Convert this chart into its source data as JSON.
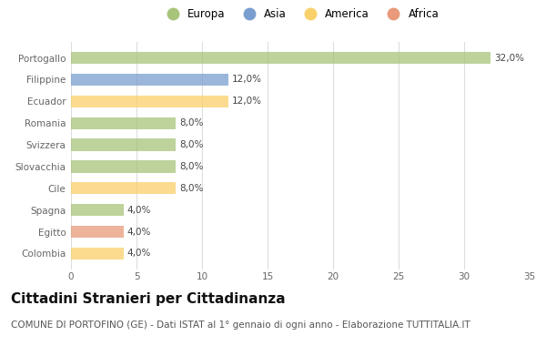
{
  "categories": [
    "Colombia",
    "Egitto",
    "Spagna",
    "Cile",
    "Slovacchia",
    "Svizzera",
    "Romania",
    "Ecuador",
    "Filippine",
    "Portogallo"
  ],
  "values": [
    4.0,
    4.0,
    4.0,
    8.0,
    8.0,
    8.0,
    8.0,
    12.0,
    12.0,
    32.0
  ],
  "colors": [
    "#f9d06a",
    "#e89a7a",
    "#a8c47a",
    "#f9d06a",
    "#a8c47a",
    "#a8c47a",
    "#a8c47a",
    "#f9d06a",
    "#7a9ecf",
    "#a8c47a"
  ],
  "continents": [
    "America",
    "Africa",
    "Europa",
    "America",
    "Europa",
    "Europa",
    "Europa",
    "America",
    "Asia",
    "Europa"
  ],
  "continent_colors": {
    "Europa": "#a8c47a",
    "Asia": "#7a9ecf",
    "America": "#f9d06a",
    "Africa": "#e89a7a"
  },
  "legend_order": [
    "Europa",
    "Asia",
    "America",
    "Africa"
  ],
  "xlim": [
    0,
    35
  ],
  "xticks": [
    0,
    5,
    10,
    15,
    20,
    25,
    30,
    35
  ],
  "title": "Cittadini Stranieri per Cittadinanza",
  "subtitle": "COMUNE DI PORTOFINO (GE) - Dati ISTAT al 1° gennaio di ogni anno - Elaborazione TUTTITALIA.IT",
  "background_color": "#ffffff",
  "bar_alpha": 0.75,
  "title_fontsize": 11,
  "subtitle_fontsize": 7.5,
  "label_fontsize": 7.5,
  "tick_fontsize": 7.5,
  "legend_fontsize": 8.5
}
